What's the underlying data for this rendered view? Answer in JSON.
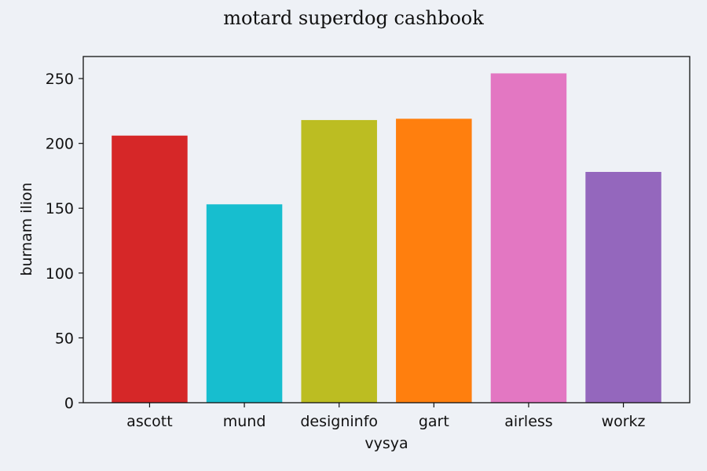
{
  "chart_data": {
    "type": "bar",
    "title": "motard superdog cashbook",
    "xlabel": "vysya",
    "ylabel": "burnam ilion",
    "categories": [
      "ascott",
      "mund",
      "designinfo",
      "gart",
      "airless",
      "workz"
    ],
    "values": [
      206,
      153,
      218,
      219,
      254,
      178
    ],
    "colors": [
      "#d62728",
      "#17becf",
      "#bcbd22",
      "#ff7f0e",
      "#e377c2",
      "#9467bd"
    ],
    "ylim": [
      0,
      267
    ],
    "yticks": [
      0,
      50,
      100,
      150,
      200,
      250
    ],
    "grid": false,
    "legend": "none"
  }
}
